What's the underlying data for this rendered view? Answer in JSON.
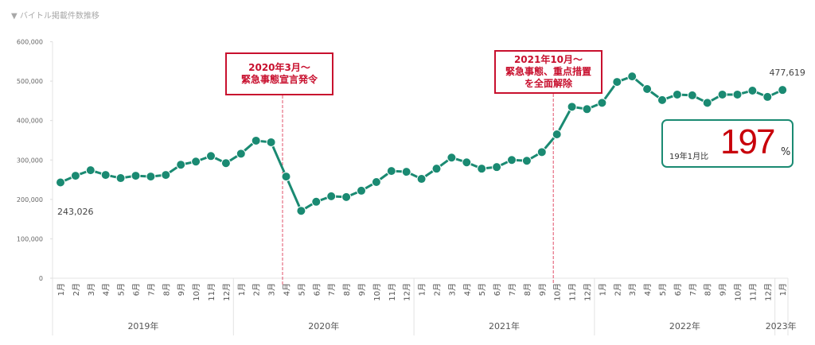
{
  "chart_data": {
    "type": "line",
    "title": "▼ バイトル掲載件数推移",
    "ylim": [
      0,
      600000
    ],
    "yticks": [
      "0",
      "100,000",
      "200,000",
      "300,000",
      "400,000",
      "500,000",
      "600,000"
    ],
    "year_labels": [
      "2019年",
      "2020年",
      "2021年",
      "2022年",
      "2023年"
    ],
    "categories": [
      "1月",
      "2月",
      "3月",
      "4月",
      "5月",
      "6月",
      "7月",
      "8月",
      "9月",
      "10月",
      "11月",
      "12月",
      "1月",
      "2月",
      "3月",
      "4月",
      "5月",
      "6月",
      "7月",
      "8月",
      "9月",
      "10月",
      "11月",
      "12月",
      "1月",
      "2月",
      "3月",
      "4月",
      "5月",
      "6月",
      "7月",
      "8月",
      "9月",
      "10月",
      "11月",
      "12月",
      "1月",
      "2月",
      "3月",
      "4月",
      "5月",
      "6月",
      "7月",
      "8月",
      "9月",
      "10月",
      "11月",
      "12月",
      "1月"
    ],
    "series": [
      {
        "name": "掲載件数",
        "color": "#1a8a72",
        "values": [
          243026,
          260000,
          274000,
          262000,
          254000,
          260000,
          258000,
          262000,
          288000,
          296000,
          310000,
          292000,
          316000,
          349000,
          345000,
          258000,
          171000,
          194000,
          208000,
          206000,
          222000,
          244000,
          272000,
          270000,
          252000,
          278000,
          306000,
          294000,
          278000,
          282000,
          300000,
          298000,
          320000,
          365000,
          435000,
          429000,
          445000,
          498000,
          512000,
          480000,
          452000,
          466000,
          464000,
          445000,
          466000,
          466000,
          476000,
          460000,
          477619
        ]
      }
    ],
    "data_labels": {
      "first": "243,026",
      "last": "477,619"
    },
    "annotations": [
      {
        "index": 15,
        "lines": [
          "2020年3月～",
          "緊急事態宣言発令"
        ]
      },
      {
        "index": 33,
        "lines": [
          "2021年10月～",
          "緊急事態、重点措置",
          "を全面解除"
        ]
      }
    ],
    "ratio_box": {
      "label": "19年1月比",
      "value": "197",
      "unit": "%"
    },
    "grid": false
  }
}
